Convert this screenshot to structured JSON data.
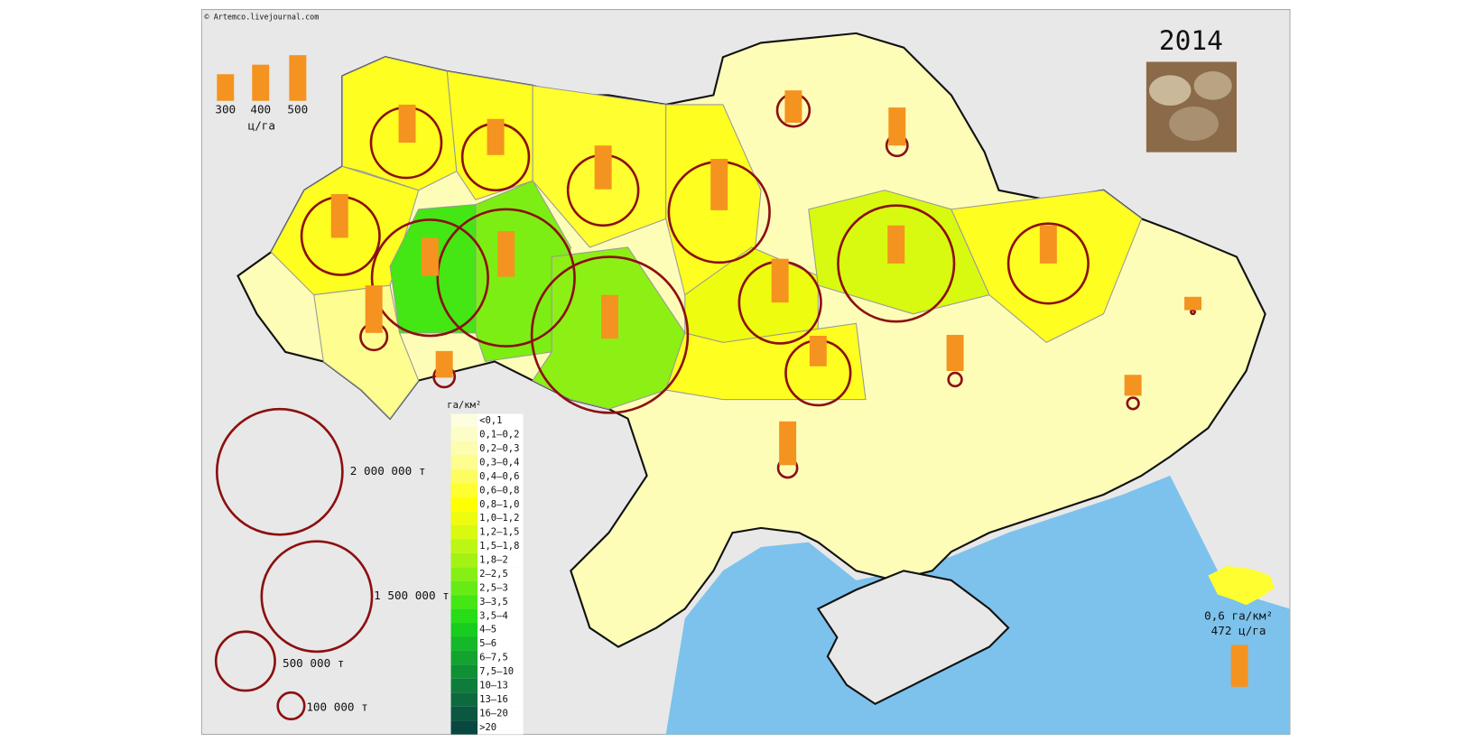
{
  "credit": "© Artemco.livejournal.com",
  "year": "2014",
  "yield_legend": {
    "labels": [
      "300",
      "400",
      "500"
    ],
    "unit": "ц/га"
  },
  "production_legend": {
    "labels": [
      "2 000 000  т",
      "1 500 000  т",
      "500 000 т",
      "100 000 т"
    ]
  },
  "density_legend": {
    "title": "га/км²",
    "classes": [
      {
        "label": "<0,1",
        "color": "#fdfde0"
      },
      {
        "label": "0,1–0,2",
        "color": "#fdfdc8"
      },
      {
        "label": "0,2–0,3",
        "color": "#fdfdb0"
      },
      {
        "label": "0,3–0,4",
        "color": "#fdfd90"
      },
      {
        "label": "0,4–0,6",
        "color": "#fdfd60"
      },
      {
        "label": "0,6–0,8",
        "color": "#fefe30"
      },
      {
        "label": "0,8–1,0",
        "color": "#ffff00"
      },
      {
        "label": "1,0–1,2",
        "color": "#eefc10"
      },
      {
        "label": "1,2–1,5",
        "color": "#d8fa10"
      },
      {
        "label": "1,5–1,8",
        "color": "#bcf614"
      },
      {
        "label": "1,8–2",
        "color": "#a4f214"
      },
      {
        "label": "2–2,5",
        "color": "#86f014"
      },
      {
        "label": "2,5–3",
        "color": "#66ec14"
      },
      {
        "label": "3–3,5",
        "color": "#44e614"
      },
      {
        "label": "3,5–4",
        "color": "#28dc18"
      },
      {
        "label": "4–5",
        "color": "#18cc20"
      },
      {
        "label": "5–6",
        "color": "#14b828"
      },
      {
        "label": "6–7,5",
        "color": "#12a42e"
      },
      {
        "label": "7,5–10",
        "color": "#109034"
      },
      {
        "label": "10–13",
        "color": "#0e7c3a"
      },
      {
        "label": "13–16",
        "color": "#0c6a3e"
      },
      {
        "label": "16–20",
        "color": "#0a5840"
      },
      {
        "label": ">20",
        "color": "#084840"
      }
    ]
  },
  "summary": {
    "density": "0,6  га/км²",
    "yield": "472  ц/га"
  }
}
